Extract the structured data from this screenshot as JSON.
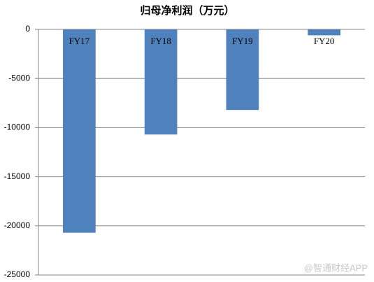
{
  "chart_data": {
    "type": "bar",
    "title": "归母净利润（万元）",
    "categories": [
      "FY17",
      "FY18",
      "FY19",
      "FY20"
    ],
    "values": [
      -20700,
      -10700,
      -8200,
      -600
    ],
    "color": "#4f81bd",
    "ylim": [
      -25000,
      0
    ],
    "yticks": [
      0,
      -5000,
      -10000,
      -15000,
      -20000,
      -25000
    ],
    "grid": true,
    "watermark": "@智通财经APP"
  }
}
